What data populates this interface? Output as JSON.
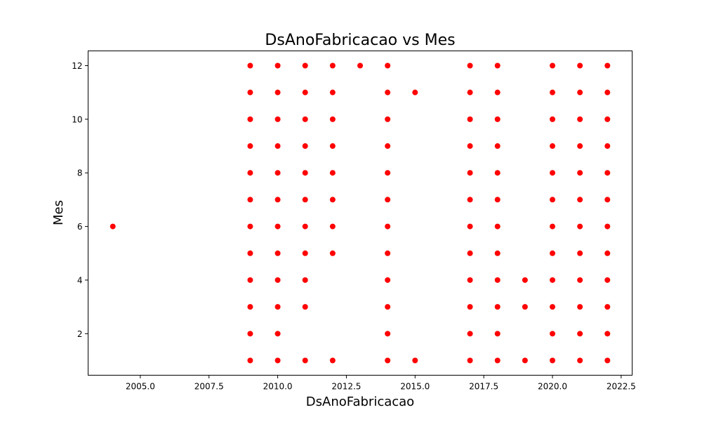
{
  "chart_data": {
    "type": "scatter",
    "title": "DsAnoFabricacao vs Mes",
    "xlabel": "DsAnoFabricacao",
    "ylabel": "Mes",
    "xlim": [
      2003.1,
      2022.9
    ],
    "ylim": [
      0.45,
      12.55
    ],
    "xticks": [
      2005.0,
      2007.5,
      2010.0,
      2012.5,
      2015.0,
      2017.5,
      2020.0,
      2022.5
    ],
    "xtick_labels": [
      "2005.0",
      "2007.5",
      "2010.0",
      "2012.5",
      "2015.0",
      "2017.5",
      "2020.0",
      "2022.5"
    ],
    "yticks": [
      2,
      4,
      6,
      8,
      10,
      12
    ],
    "ytick_labels": [
      "2",
      "4",
      "6",
      "8",
      "10",
      "12"
    ],
    "grid": false,
    "marker_color": "#ff0000",
    "points": [
      [
        2004,
        6
      ],
      [
        2009,
        1
      ],
      [
        2009,
        2
      ],
      [
        2009,
        3
      ],
      [
        2009,
        4
      ],
      [
        2009,
        5
      ],
      [
        2009,
        6
      ],
      [
        2009,
        7
      ],
      [
        2009,
        8
      ],
      [
        2009,
        9
      ],
      [
        2009,
        10
      ],
      [
        2009,
        11
      ],
      [
        2009,
        12
      ],
      [
        2010,
        1
      ],
      [
        2010,
        2
      ],
      [
        2010,
        3
      ],
      [
        2010,
        4
      ],
      [
        2010,
        5
      ],
      [
        2010,
        6
      ],
      [
        2010,
        7
      ],
      [
        2010,
        8
      ],
      [
        2010,
        9
      ],
      [
        2010,
        10
      ],
      [
        2010,
        11
      ],
      [
        2010,
        12
      ],
      [
        2011,
        1
      ],
      [
        2011,
        3
      ],
      [
        2011,
        4
      ],
      [
        2011,
        5
      ],
      [
        2011,
        6
      ],
      [
        2011,
        7
      ],
      [
        2011,
        8
      ],
      [
        2011,
        9
      ],
      [
        2011,
        10
      ],
      [
        2011,
        11
      ],
      [
        2011,
        12
      ],
      [
        2012,
        1
      ],
      [
        2012,
        5
      ],
      [
        2012,
        6
      ],
      [
        2012,
        7
      ],
      [
        2012,
        8
      ],
      [
        2012,
        9
      ],
      [
        2012,
        10
      ],
      [
        2012,
        11
      ],
      [
        2012,
        12
      ],
      [
        2013,
        12
      ],
      [
        2014,
        1
      ],
      [
        2014,
        2
      ],
      [
        2014,
        3
      ],
      [
        2014,
        4
      ],
      [
        2014,
        5
      ],
      [
        2014,
        6
      ],
      [
        2014,
        7
      ],
      [
        2014,
        8
      ],
      [
        2014,
        9
      ],
      [
        2014,
        10
      ],
      [
        2014,
        11
      ],
      [
        2014,
        12
      ],
      [
        2015,
        1
      ],
      [
        2015,
        11
      ],
      [
        2017,
        1
      ],
      [
        2017,
        2
      ],
      [
        2017,
        3
      ],
      [
        2017,
        4
      ],
      [
        2017,
        5
      ],
      [
        2017,
        6
      ],
      [
        2017,
        7
      ],
      [
        2017,
        8
      ],
      [
        2017,
        9
      ],
      [
        2017,
        10
      ],
      [
        2017,
        11
      ],
      [
        2017,
        12
      ],
      [
        2018,
        1
      ],
      [
        2018,
        2
      ],
      [
        2018,
        3
      ],
      [
        2018,
        4
      ],
      [
        2018,
        5
      ],
      [
        2018,
        6
      ],
      [
        2018,
        7
      ],
      [
        2018,
        8
      ],
      [
        2018,
        9
      ],
      [
        2018,
        10
      ],
      [
        2018,
        11
      ],
      [
        2018,
        12
      ],
      [
        2019,
        1
      ],
      [
        2019,
        3
      ],
      [
        2019,
        4
      ],
      [
        2020,
        1
      ],
      [
        2020,
        2
      ],
      [
        2020,
        3
      ],
      [
        2020,
        4
      ],
      [
        2020,
        5
      ],
      [
        2020,
        6
      ],
      [
        2020,
        7
      ],
      [
        2020,
        8
      ],
      [
        2020,
        9
      ],
      [
        2020,
        10
      ],
      [
        2020,
        11
      ],
      [
        2020,
        12
      ],
      [
        2021,
        1
      ],
      [
        2021,
        2
      ],
      [
        2021,
        3
      ],
      [
        2021,
        4
      ],
      [
        2021,
        5
      ],
      [
        2021,
        6
      ],
      [
        2021,
        7
      ],
      [
        2021,
        8
      ],
      [
        2021,
        9
      ],
      [
        2021,
        10
      ],
      [
        2021,
        11
      ],
      [
        2021,
        12
      ],
      [
        2022,
        1
      ],
      [
        2022,
        2
      ],
      [
        2022,
        3
      ],
      [
        2022,
        4
      ],
      [
        2022,
        5
      ],
      [
        2022,
        6
      ],
      [
        2022,
        7
      ],
      [
        2022,
        8
      ],
      [
        2022,
        9
      ],
      [
        2022,
        10
      ],
      [
        2022,
        11
      ],
      [
        2022,
        12
      ]
    ]
  }
}
